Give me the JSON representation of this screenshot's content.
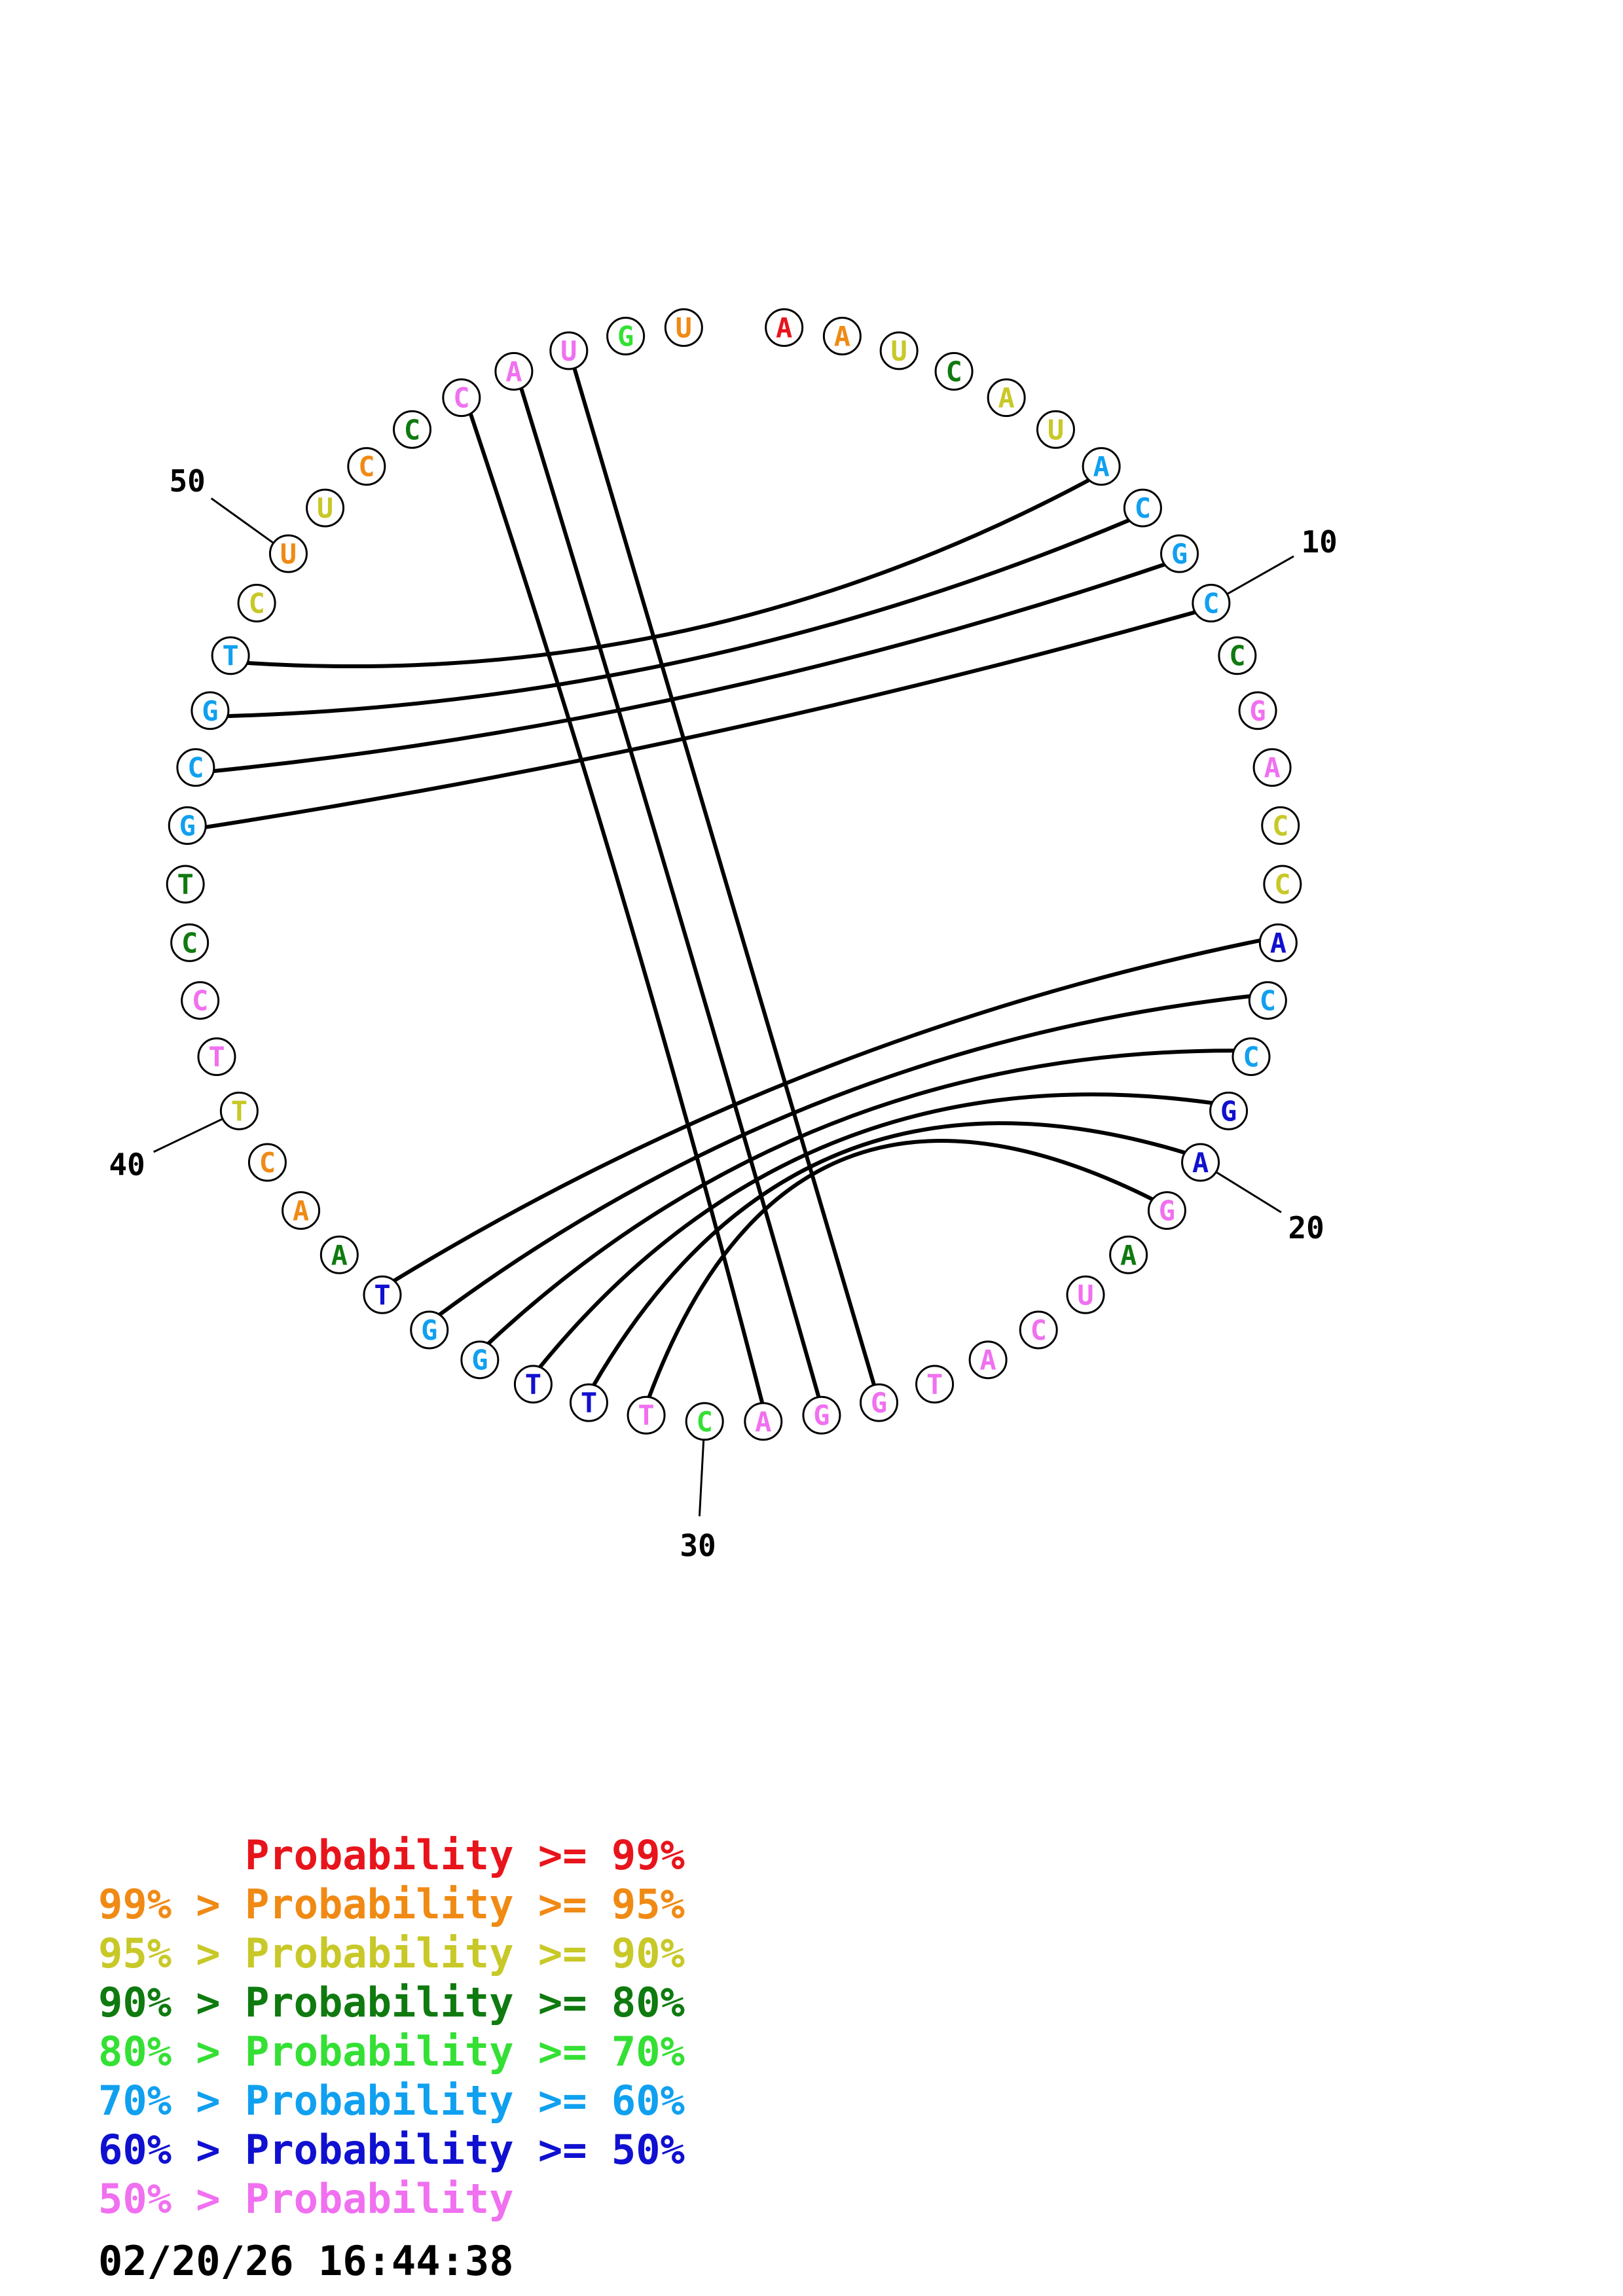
{
  "colors": {
    "p99": "#e8141c",
    "p95": "#f08a14",
    "p90": "#c8c828",
    "p80": "#0f7a0f",
    "p70": "#34e034",
    "p60": "#10a0f0",
    "p50": "#1010d0",
    "p00": "#f070f0"
  },
  "nucleotides": [
    {
      "n": 1,
      "letter": "A",
      "color": "p99"
    },
    {
      "n": 2,
      "letter": "A",
      "color": "p95"
    },
    {
      "n": 3,
      "letter": "U",
      "color": "p90"
    },
    {
      "n": 4,
      "letter": "C",
      "color": "p80"
    },
    {
      "n": 5,
      "letter": "A",
      "color": "p90"
    },
    {
      "n": 6,
      "letter": "U",
      "color": "p90"
    },
    {
      "n": 7,
      "letter": "A",
      "color": "p60"
    },
    {
      "n": 8,
      "letter": "C",
      "color": "p60"
    },
    {
      "n": 9,
      "letter": "G",
      "color": "p60"
    },
    {
      "n": 10,
      "letter": "C",
      "color": "p60"
    },
    {
      "n": 11,
      "letter": "C",
      "color": "p80"
    },
    {
      "n": 12,
      "letter": "G",
      "color": "p00"
    },
    {
      "n": 13,
      "letter": "A",
      "color": "p00"
    },
    {
      "n": 14,
      "letter": "C",
      "color": "p90"
    },
    {
      "n": 15,
      "letter": "C",
      "color": "p90"
    },
    {
      "n": 16,
      "letter": "A",
      "color": "p50"
    },
    {
      "n": 17,
      "letter": "C",
      "color": "p60"
    },
    {
      "n": 18,
      "letter": "C",
      "color": "p60"
    },
    {
      "n": 19,
      "letter": "G",
      "color": "p50"
    },
    {
      "n": 20,
      "letter": "A",
      "color": "p50"
    },
    {
      "n": 21,
      "letter": "G",
      "color": "p00"
    },
    {
      "n": 22,
      "letter": "A",
      "color": "p80"
    },
    {
      "n": 23,
      "letter": "U",
      "color": "p00"
    },
    {
      "n": 24,
      "letter": "C",
      "color": "p00"
    },
    {
      "n": 25,
      "letter": "A",
      "color": "p00"
    },
    {
      "n": 26,
      "letter": "T",
      "color": "p00"
    },
    {
      "n": 27,
      "letter": "G",
      "color": "p00"
    },
    {
      "n": 28,
      "letter": "G",
      "color": "p00"
    },
    {
      "n": 29,
      "letter": "A",
      "color": "p00"
    },
    {
      "n": 30,
      "letter": "C",
      "color": "p70"
    },
    {
      "n": 31,
      "letter": "T",
      "color": "p00"
    },
    {
      "n": 32,
      "letter": "T",
      "color": "p50"
    },
    {
      "n": 33,
      "letter": "T",
      "color": "p50"
    },
    {
      "n": 34,
      "letter": "G",
      "color": "p60"
    },
    {
      "n": 35,
      "letter": "G",
      "color": "p60"
    },
    {
      "n": 36,
      "letter": "T",
      "color": "p50"
    },
    {
      "n": 37,
      "letter": "A",
      "color": "p80"
    },
    {
      "n": 38,
      "letter": "A",
      "color": "p95"
    },
    {
      "n": 39,
      "letter": "C",
      "color": "p95"
    },
    {
      "n": 40,
      "letter": "T",
      "color": "p90"
    },
    {
      "n": 41,
      "letter": "T",
      "color": "p00"
    },
    {
      "n": 42,
      "letter": "C",
      "color": "p00"
    },
    {
      "n": 43,
      "letter": "C",
      "color": "p80"
    },
    {
      "n": 44,
      "letter": "T",
      "color": "p80"
    },
    {
      "n": 45,
      "letter": "G",
      "color": "p60"
    },
    {
      "n": 46,
      "letter": "C",
      "color": "p60"
    },
    {
      "n": 47,
      "letter": "G",
      "color": "p60"
    },
    {
      "n": 48,
      "letter": "T",
      "color": "p60"
    },
    {
      "n": 49,
      "letter": "C",
      "color": "p90"
    },
    {
      "n": 50,
      "letter": "U",
      "color": "p95"
    },
    {
      "n": 51,
      "letter": "U",
      "color": "p90"
    },
    {
      "n": 52,
      "letter": "C",
      "color": "p95"
    },
    {
      "n": 53,
      "letter": "C",
      "color": "p80"
    },
    {
      "n": 54,
      "letter": "C",
      "color": "p00"
    },
    {
      "n": 55,
      "letter": "A",
      "color": "p00"
    },
    {
      "n": 56,
      "letter": "U",
      "color": "p00"
    },
    {
      "n": 57,
      "letter": "G",
      "color": "p70"
    },
    {
      "n": 58,
      "letter": "U",
      "color": "p95"
    }
  ],
  "pairs": [
    [
      7,
      48
    ],
    [
      8,
      47
    ],
    [
      9,
      46
    ],
    [
      10,
      45
    ],
    [
      16,
      36
    ],
    [
      17,
      35
    ],
    [
      18,
      34
    ],
    [
      19,
      33
    ],
    [
      20,
      32
    ],
    [
      21,
      31
    ],
    [
      29,
      54
    ],
    [
      28,
      55
    ],
    [
      27,
      56
    ]
  ],
  "position_labels": [
    {
      "n": 10,
      "text": "10"
    },
    {
      "n": 20,
      "text": "20"
    },
    {
      "n": 30,
      "text": "30"
    },
    {
      "n": 40,
      "text": "40"
    },
    {
      "n": 50,
      "text": "50"
    }
  ],
  "legend": [
    {
      "prefix": "",
      "prob": "Probability",
      "suffix": " >= 99%",
      "color": "p99"
    },
    {
      "prefix": "99% > ",
      "prob": "Probability",
      "suffix": " >= 95%",
      "color": "p95"
    },
    {
      "prefix": "95% > ",
      "prob": "Probability",
      "suffix": " >= 90%",
      "color": "p90"
    },
    {
      "prefix": "90% > ",
      "prob": "Probability",
      "suffix": " >= 80%",
      "color": "p80"
    },
    {
      "prefix": "80% > ",
      "prob": "Probability",
      "suffix": " >= 70%",
      "color": "p70"
    },
    {
      "prefix": "70% > ",
      "prob": "Probability",
      "suffix": " >= 60%",
      "color": "p60"
    },
    {
      "prefix": "60% > ",
      "prob": "Probability",
      "suffix": " >= 50%",
      "color": "p50"
    },
    {
      "prefix": "50% > ",
      "prob": "Probability",
      "suffix": "",
      "color": "p00"
    }
  ],
  "timestamp": "02/20/26 16:44:38"
}
